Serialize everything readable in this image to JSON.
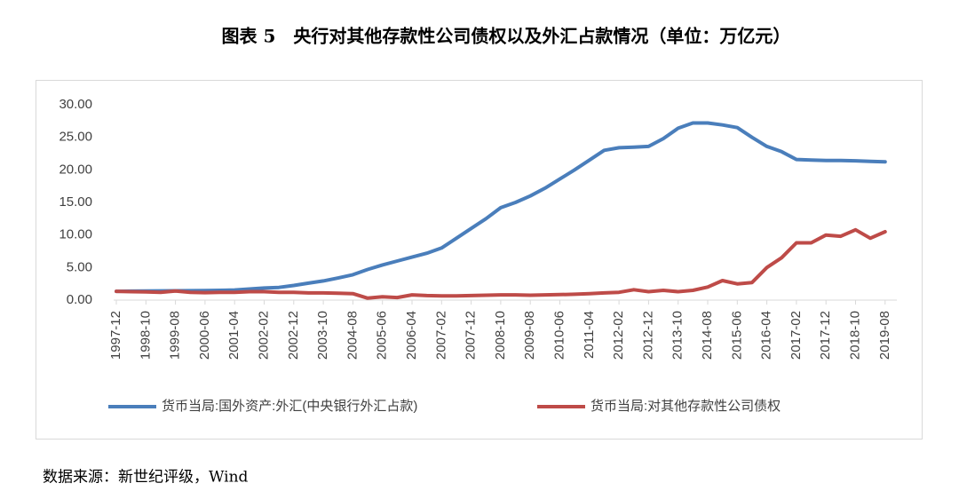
{
  "chart_data": {
    "type": "line",
    "title": "图表 5　央行对其他存款性公司债权以及外汇占款情况（单位：万亿元）",
    "source": "数据来源：新世纪评级，Wind",
    "categories": [
      "1997-12",
      null,
      "1998-10",
      null,
      "1999-08",
      null,
      "2000-06",
      null,
      "2001-04",
      null,
      "2002-02",
      null,
      "2002-12",
      null,
      "2003-10",
      null,
      "2004-08",
      null,
      "2005-06",
      null,
      "2006-04",
      null,
      "2007-02",
      null,
      "2007-12",
      null,
      "2008-10",
      null,
      "2009-08",
      null,
      "2010-06",
      null,
      "2011-04",
      null,
      "2012-02",
      null,
      "2012-12",
      null,
      "2013-10",
      null,
      "2014-08",
      null,
      "2015-06",
      null,
      "2016-04",
      null,
      "2017-02",
      null,
      "2017-12",
      null,
      "2018-10",
      null,
      "2019-08"
    ],
    "series": [
      {
        "name": "货币当局:国外资产:外汇(中央银行外汇占款)",
        "color": "#4a7ebb",
        "values": [
          1.35,
          1.38,
          1.4,
          1.42,
          1.43,
          1.45,
          1.47,
          1.5,
          1.55,
          1.7,
          1.85,
          1.95,
          2.25,
          2.6,
          2.95,
          3.4,
          3.9,
          4.7,
          5.4,
          6.0,
          6.6,
          7.2,
          8.0,
          9.5,
          11.0,
          12.5,
          14.2,
          15.0,
          16.0,
          17.2,
          18.6,
          20.0,
          21.5,
          23.0,
          23.4,
          23.5,
          23.6,
          24.8,
          26.4,
          27.2,
          27.2,
          26.9,
          26.5,
          25.0,
          23.6,
          22.8,
          21.6,
          21.5,
          21.45,
          21.45,
          21.4,
          21.3,
          21.25
        ]
      },
      {
        "name": "货币当局:对其他存款性公司债权",
        "color": "#be4b48",
        "values": [
          1.35,
          1.3,
          1.25,
          1.2,
          1.4,
          1.2,
          1.15,
          1.2,
          1.2,
          1.3,
          1.3,
          1.2,
          1.2,
          1.1,
          1.1,
          1.05,
          1.0,
          0.3,
          0.5,
          0.4,
          0.8,
          0.7,
          0.65,
          0.65,
          0.7,
          0.75,
          0.8,
          0.8,
          0.75,
          0.8,
          0.85,
          0.9,
          1.0,
          1.1,
          1.2,
          1.6,
          1.3,
          1.5,
          1.3,
          1.5,
          2.0,
          3.0,
          2.5,
          2.7,
          5.0,
          6.5,
          8.8,
          8.8,
          10.0,
          9.8,
          10.8,
          9.5,
          10.5
        ]
      }
    ],
    "ylim": [
      0,
      30
    ],
    "yticks": [
      {
        "value": 0,
        "label": "0.00"
      },
      {
        "value": 5,
        "label": "5.00"
      },
      {
        "value": 10,
        "label": "10.00"
      },
      {
        "value": 15,
        "label": "15.00"
      },
      {
        "value": 20,
        "label": "20.00"
      },
      {
        "value": 25,
        "label": "25.00"
      },
      {
        "value": 30,
        "label": "30.00"
      }
    ]
  }
}
